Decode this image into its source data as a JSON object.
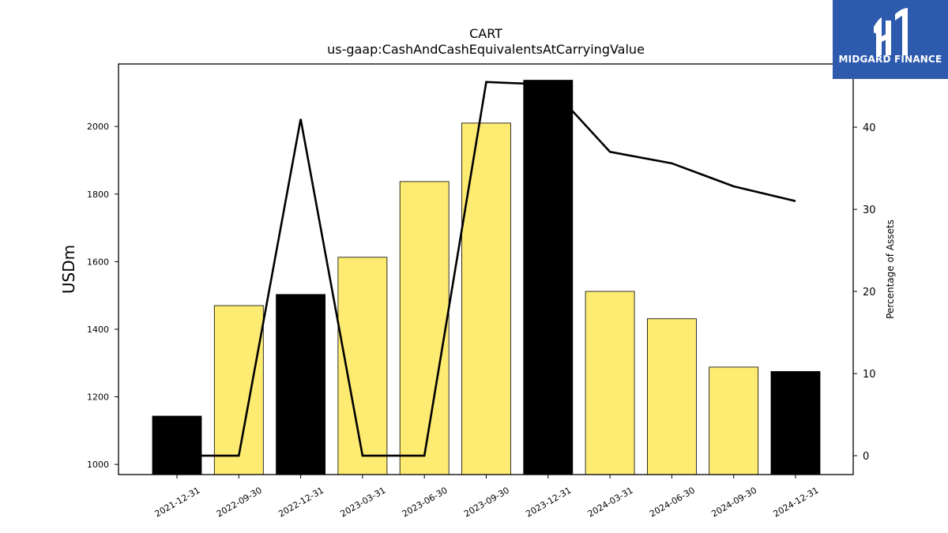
{
  "logo": {
    "text": "MIDGARD FINANCE",
    "background_color": "#2d5aad"
  },
  "chart_data": {
    "type": "bar",
    "title": "CART",
    "subtitle": "us-gaap:CashAndCashEquivalentsAtCarryingValue",
    "ylabel": "USDm",
    "y2label": "Percentage of Assets",
    "ylim": [
      970,
      2185
    ],
    "y2lim": [
      -2.3,
      47.7
    ],
    "yticks": [
      1000,
      1200,
      1400,
      1600,
      1800,
      2000
    ],
    "y2ticks": [
      0,
      10,
      20,
      30,
      40
    ],
    "categories": [
      "2021-12-31",
      "2022-09-30",
      "2022-12-31",
      "2023-03-31",
      "2023-06-30",
      "2023-09-30",
      "2023-12-31",
      "2024-03-31",
      "2024-06-30",
      "2024-09-30",
      "2024-12-31"
    ],
    "series": [
      {
        "kind": "bar",
        "values": [
          1143,
          1470,
          1503,
          1613,
          1837,
          2010,
          2137,
          1512,
          1431,
          1288,
          1275
        ],
        "bar_colors": [
          "#000000",
          "#fdeb72",
          "#000000",
          "#fdeb72",
          "#fdeb72",
          "#fdeb72",
          "#000000",
          "#fdeb72",
          "#fdeb72",
          "#fdeb72",
          "#000000"
        ]
      },
      {
        "kind": "line",
        "axis": "right",
        "color": "#000000",
        "values": [
          0,
          0,
          41,
          0,
          0,
          45.5,
          45.2,
          37,
          35.6,
          32.8,
          31
        ]
      }
    ],
    "grid": false,
    "legend": "none"
  }
}
